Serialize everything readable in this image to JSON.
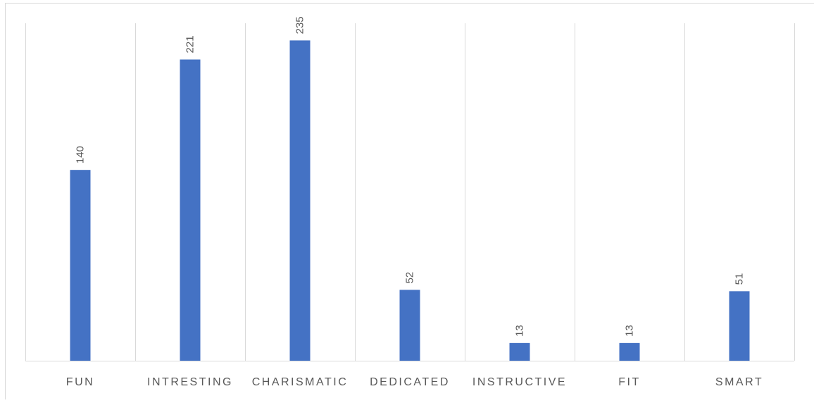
{
  "chart_data": {
    "type": "bar",
    "categories": [
      "FUN",
      "INTRESTING",
      "CHARISMATIC",
      "DEDICATED",
      "INSTRUCTIVE",
      "FIT",
      "SMART"
    ],
    "values": [
      140,
      221,
      235,
      52,
      13,
      13,
      51
    ],
    "title": "",
    "xlabel": "",
    "ylabel": "",
    "ylim": [
      0,
      250
    ],
    "grid": "vertical category separators",
    "legend": "none",
    "data_labels": true,
    "bar_color": "#4472c4",
    "gridline_color": "#d9d9d9",
    "label_color": "#595959"
  }
}
